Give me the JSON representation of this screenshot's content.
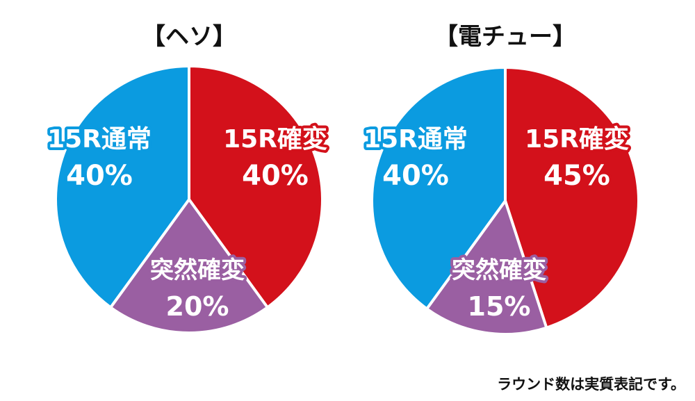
{
  "chart_data": [
    {
      "type": "pie",
      "title": "【ヘソ】",
      "slices": [
        {
          "name": "15R確変",
          "value": 40,
          "value_label": "40%",
          "color": "#d3111b"
        },
        {
          "name": "突然確変",
          "value": 20,
          "value_label": "20%",
          "color": "#9a5fa2"
        },
        {
          "name": "15R通常",
          "value": 40,
          "value_label": "40%",
          "color": "#0b9be0"
        }
      ]
    },
    {
      "type": "pie",
      "title": "【電チュー】",
      "slices": [
        {
          "name": "15R確変",
          "value": 45,
          "value_label": "45%",
          "color": "#d3111b"
        },
        {
          "name": "突然確変",
          "value": 15,
          "value_label": "15%",
          "color": "#9a5fa2"
        },
        {
          "name": "15R通常",
          "value": 40,
          "value_label": "40%",
          "color": "#0b9be0"
        }
      ]
    }
  ],
  "footnote": "ラウンド数は実質表記です。"
}
